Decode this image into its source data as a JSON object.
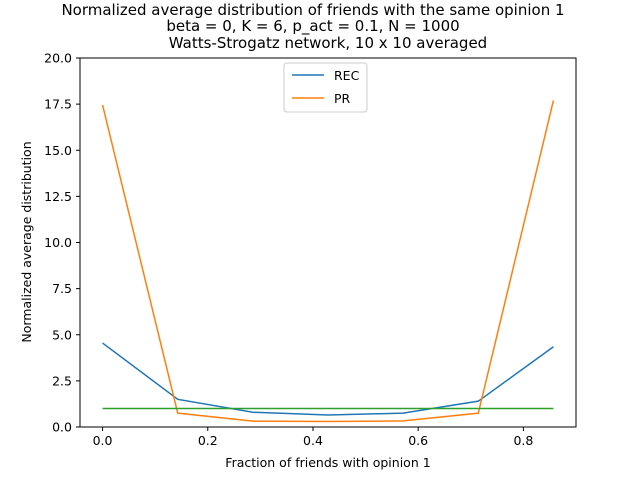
{
  "chart_data": {
    "type": "line",
    "title": [
      "Normalized average distribution of friends with the same opinion 1",
      "beta = 0, K = 6, p_act = 0.1, N = 1000",
      "Watts-Strogatz network, 10 x 10 averaged"
    ],
    "xlabel": "Fraction of friends with opinion 1",
    "ylabel": "Normalized average distribution",
    "xlim": [
      -0.0429,
      0.9
    ],
    "ylim": [
      0,
      20
    ],
    "xticks": [
      0.0,
      0.2,
      0.4,
      0.6,
      0.8
    ],
    "xtick_labels": [
      "0.0",
      "0.2",
      "0.4",
      "0.6",
      "0.8"
    ],
    "yticks": [
      0,
      2.5,
      5,
      7.5,
      10,
      12.5,
      15,
      17.5,
      20
    ],
    "ytick_labels": [
      "0.0",
      "2.5",
      "5.0",
      "7.5",
      "10.0",
      "12.5",
      "15.0",
      "17.5",
      "20.0"
    ],
    "x": [
      0.0,
      0.1429,
      0.2857,
      0.4286,
      0.5714,
      0.7143,
      0.8571
    ],
    "series": [
      {
        "name": "REC",
        "color": "#1f77b4",
        "values": [
          4.55,
          1.5,
          0.8,
          0.65,
          0.75,
          1.4,
          4.35
        ]
      },
      {
        "name": "PR",
        "color": "#ff7f0e",
        "values": [
          17.45,
          0.75,
          0.32,
          0.3,
          0.33,
          0.75,
          17.7
        ]
      },
      {
        "name": "",
        "color": "#2ca02c",
        "values": [
          1.0,
          1.0,
          1.0,
          1.0,
          1.0,
          1.0,
          1.0
        ]
      }
    ],
    "legend": {
      "entries": [
        "REC",
        "PR"
      ],
      "placement": "upper center"
    },
    "grid": false
  }
}
